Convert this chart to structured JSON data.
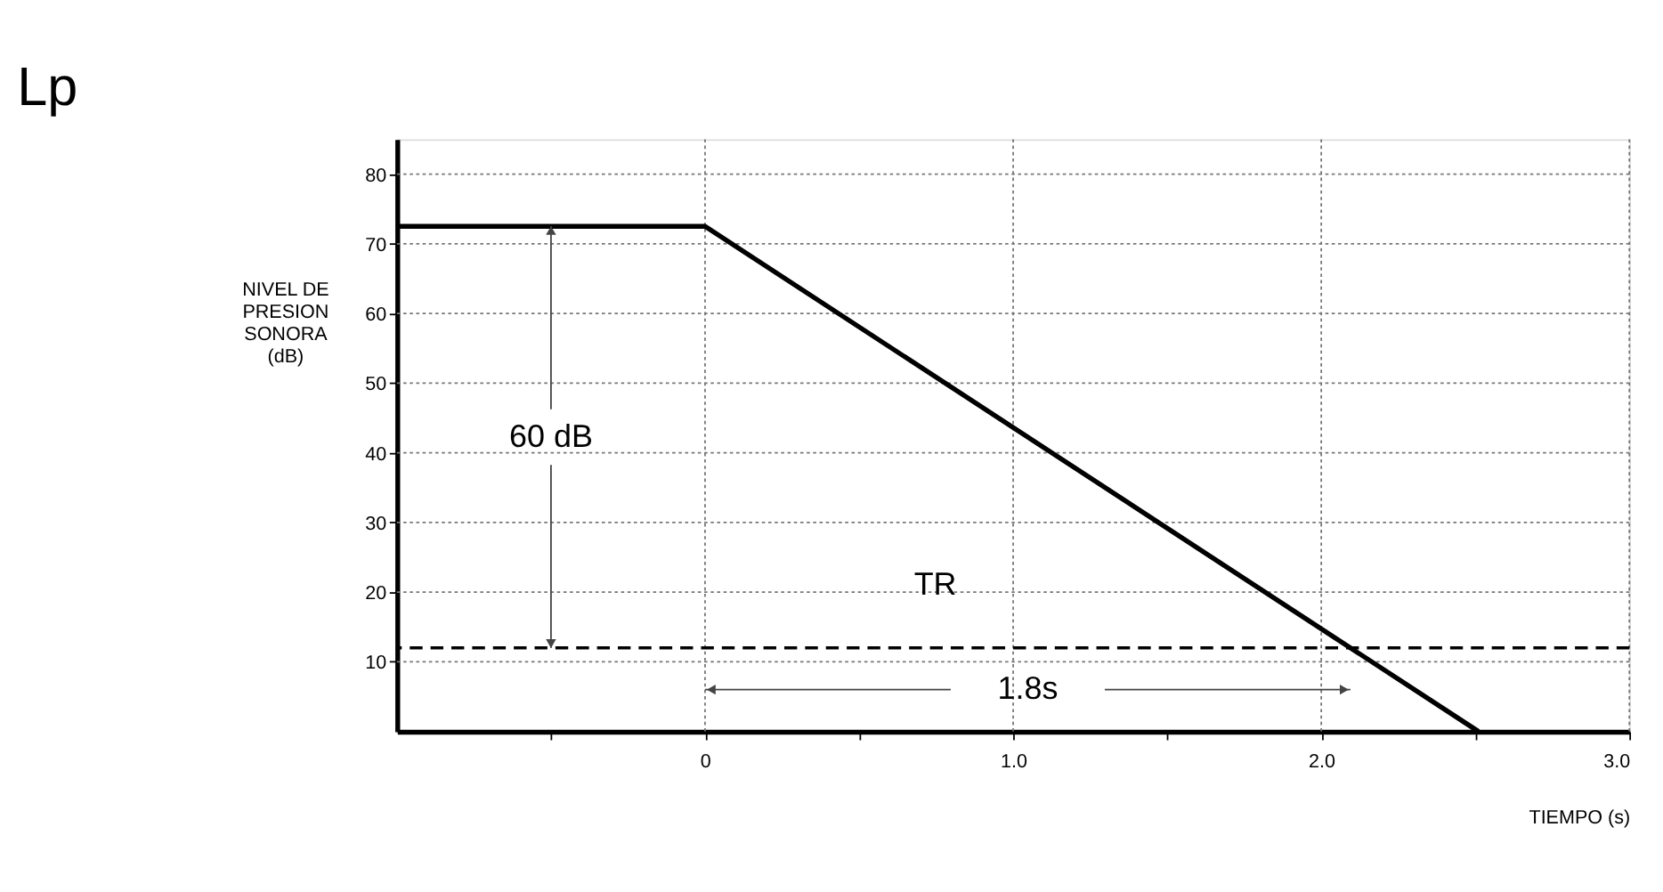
{
  "chart_data": {
    "type": "line",
    "title": "Lp",
    "xlabel": "TIEMPO (s)",
    "ylabel": "NIVEL DE PRESION SONORA (dB)",
    "series": [
      {
        "color": "#000000",
        "x": [
          -1,
          0,
          2.51
        ],
        "values": [
          72.5,
          72.5,
          0
        ]
      }
    ],
    "xlim": [
      -1,
      3
    ],
    "ylim": [
      0,
      85
    ],
    "xticks": [
      {
        "value": -0.5,
        "label": null
      },
      {
        "value": 0,
        "label": "0"
      },
      {
        "value": 0.5,
        "label": null
      },
      {
        "value": 1,
        "label": "1.0"
      },
      {
        "value": 1.5,
        "label": null
      },
      {
        "value": 2,
        "label": "2.0"
      },
      {
        "value": 2.5,
        "label": null
      },
      {
        "value": 3,
        "label": "3.0"
      }
    ],
    "yticks": [
      10,
      20,
      30,
      40,
      50,
      60,
      70,
      80
    ],
    "grid": true,
    "marker": "none",
    "line_style": "solid",
    "ref_lines": [
      {
        "axis": "y",
        "value": 12,
        "color": "#000000",
        "line_style": "dashed"
      }
    ],
    "annotations": [
      {
        "text": "60 dB",
        "x": -0.5,
        "y": 72.5
      },
      "1.8s",
      "TR"
    ]
  }
}
